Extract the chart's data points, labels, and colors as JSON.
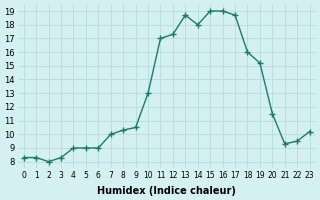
{
  "x": [
    0,
    1,
    2,
    3,
    4,
    5,
    6,
    7,
    8,
    9,
    10,
    11,
    12,
    13,
    14,
    15,
    16,
    17,
    18,
    19,
    20,
    21,
    22,
    23
  ],
  "y": [
    8.3,
    8.3,
    8.0,
    8.3,
    9.0,
    9.0,
    9.0,
    10.0,
    10.3,
    10.5,
    13.0,
    17.0,
    17.3,
    18.7,
    18.0,
    19.0,
    19.0,
    18.7,
    16.0,
    15.2,
    11.5,
    9.3,
    9.5,
    10.2
  ],
  "line_color": "#1a7a6e",
  "marker": "+",
  "marker_size": 4,
  "bg_color": "#d4f0f0",
  "grid_color": "#b0d8d8",
  "xlabel": "Humidex (Indice chaleur)",
  "xlim": [
    -0.5,
    23.5
  ],
  "ylim": [
    7.5,
    19.5
  ],
  "yticks": [
    8,
    9,
    10,
    11,
    12,
    13,
    14,
    15,
    16,
    17,
    18,
    19
  ],
  "xticks": [
    0,
    1,
    2,
    3,
    4,
    5,
    6,
    7,
    8,
    9,
    10,
    11,
    12,
    13,
    14,
    15,
    16,
    17,
    18,
    19,
    20,
    21,
    22,
    23
  ],
  "xtick_labels": [
    "0",
    "1",
    "2",
    "3",
    "4",
    "5",
    "6",
    "7",
    "8",
    "9",
    "10",
    "11",
    "12",
    "13",
    "14",
    "15",
    "16",
    "17",
    "18",
    "19",
    "20",
    "21",
    "22",
    "23"
  ]
}
